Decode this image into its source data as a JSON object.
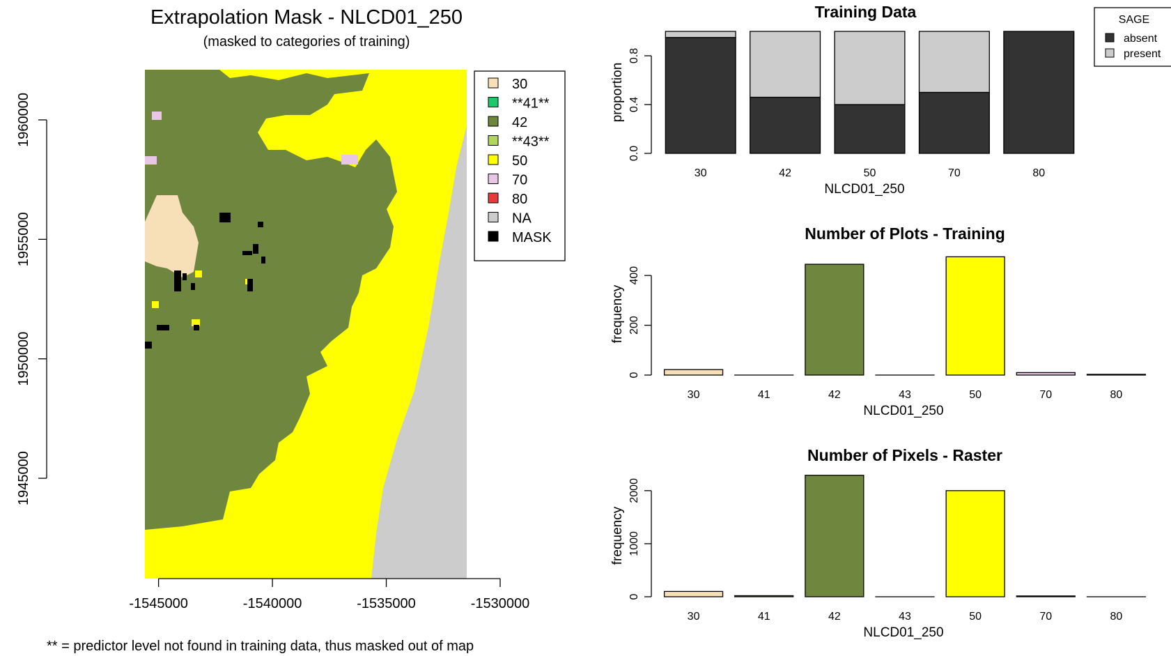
{
  "map": {
    "title": "Extrapolation Mask - NLCD01_250",
    "subtitle": "(masked to categories of training)",
    "footnote": "** = predictor level not found in training data, thus masked out of map",
    "x_ticks": [
      "-1545000",
      "-1540000",
      "-1535000",
      "-1530000"
    ],
    "x_tick_values": [
      -1545000,
      -1540000,
      -1535000,
      -1530000
    ],
    "y_ticks": [
      "1960000",
      "1955000",
      "1950000",
      "1945000"
    ],
    "y_tick_values": [
      1960000,
      1955000,
      1950000,
      1945000
    ],
    "legend": [
      {
        "label": "30",
        "color": "#F7DFB8"
      },
      {
        "label": "**41**",
        "color": "#1EC96C"
      },
      {
        "label": "42",
        "color": "#6E863E"
      },
      {
        "label": "**43**",
        "color": "#B2D65A"
      },
      {
        "label": "50",
        "color": "#FFFF00"
      },
      {
        "label": "70",
        "color": "#E8C6E6"
      },
      {
        "label": "80",
        "color": "#E83A3A"
      },
      {
        "label": "NA",
        "color": "#CCCCCC"
      },
      {
        "label": "MASK",
        "color": "#000000"
      }
    ]
  },
  "chart_data": [
    {
      "type": "bar",
      "title": "Training Data",
      "xlabel": "NLCD01_250",
      "ylabel": "proportion",
      "categories": [
        "30",
        "42",
        "50",
        "70",
        "80"
      ],
      "series": [
        {
          "name": "absent",
          "color": "#333333",
          "values": [
            0.95,
            0.46,
            0.4,
            0.5,
            1.0
          ]
        },
        {
          "name": "present",
          "color": "#CCCCCC",
          "values": [
            0.05,
            0.54,
            0.6,
            0.5,
            0.0
          ]
        }
      ],
      "stacked": true,
      "ylim": [
        0,
        1
      ],
      "y_ticks": [
        "0.0",
        "0.4",
        "0.8"
      ],
      "y_tick_values": [
        0,
        0.4,
        0.8
      ],
      "legend_title": "SAGE",
      "legend_position": "top-right"
    },
    {
      "type": "bar",
      "title": "Number of Plots - Training",
      "xlabel": "NLCD01_250",
      "ylabel": "frequency",
      "categories": [
        "30",
        "41",
        "42",
        "43",
        "50",
        "70",
        "80"
      ],
      "colors": [
        "#F7DFB8",
        "#1EC96C",
        "#6E863E",
        "#B2D65A",
        "#FFFF00",
        "#E8C6E6",
        "#E83A3A"
      ],
      "values": [
        22,
        0,
        445,
        0,
        475,
        10,
        3
      ],
      "ylim": [
        0,
        490
      ],
      "y_ticks": [
        "0",
        "200",
        "400"
      ],
      "y_tick_values": [
        0,
        200,
        400
      ]
    },
    {
      "type": "bar",
      "title": "Number of Pixels - Raster",
      "xlabel": "NLCD01_250",
      "ylabel": "frequency",
      "categories": [
        "30",
        "41",
        "42",
        "43",
        "50",
        "70",
        "80"
      ],
      "colors": [
        "#F7DFB8",
        "#1EC96C",
        "#6E863E",
        "#B2D65A",
        "#FFFF00",
        "#E8C6E6",
        "#E83A3A"
      ],
      "values": [
        100,
        20,
        2290,
        0,
        2000,
        15,
        0
      ],
      "ylim": [
        0,
        2300
      ],
      "y_ticks": [
        "0",
        "1000",
        "2000"
      ],
      "y_tick_values": [
        0,
        1000,
        2000
      ]
    }
  ]
}
